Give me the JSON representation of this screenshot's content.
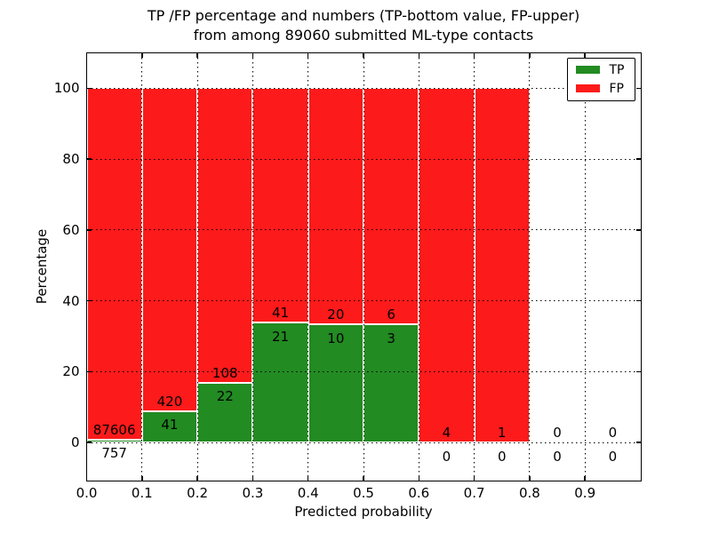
{
  "chart_data": {
    "type": "bar",
    "variant": "stacked-percentage-histogram",
    "title_line1": "TP /FP percentage and numbers (TP-bottom value, FP-upper)",
    "title_line2": "from among 89060 submitted ML-type contacts",
    "total_contacts": 89060,
    "xlabel": "Predicted probability",
    "ylabel": "Percentage",
    "bin_width": 0.1,
    "bin_starts": [
      0.0,
      0.1,
      0.2,
      0.3,
      0.4,
      0.5,
      0.6,
      0.7,
      0.8,
      0.9
    ],
    "series": [
      {
        "name": "TP",
        "color": "#228b22",
        "counts": [
          757,
          41,
          22,
          21,
          10,
          3,
          0,
          0,
          0,
          0
        ]
      },
      {
        "name": "FP",
        "color": "#fc1a1a",
        "counts": [
          87606,
          420,
          108,
          41,
          20,
          6,
          4,
          1,
          0,
          0
        ]
      }
    ],
    "tp_percent_by_bin": [
      0.86,
      8.89,
      16.92,
      33.87,
      33.33,
      33.33,
      0.0,
      0.0,
      0.0,
      0.0
    ],
    "xtick_labels": [
      "0.0",
      "0.1",
      "0.2",
      "0.3",
      "0.4",
      "0.5",
      "0.6",
      "0.7",
      "0.8",
      "0.9"
    ],
    "xtick_values": [
      0.0,
      0.1,
      0.2,
      0.3,
      0.4,
      0.5,
      0.6,
      0.7,
      0.8,
      0.9
    ],
    "ytick_labels": [
      "0",
      "20",
      "40",
      "60",
      "80",
      "100"
    ],
    "ytick_values": [
      0,
      20,
      40,
      60,
      80,
      100
    ],
    "xlim": [
      0.0,
      1.0
    ],
    "ylim": [
      -10.6,
      110
    ],
    "grid": {
      "style": "dotted",
      "color": "#000000",
      "drawn_above_bars": true
    },
    "legend": {
      "position": "upper right",
      "entries": [
        "TP",
        "FP"
      ]
    },
    "background_color": "#ffffff",
    "text_color": "#000000"
  }
}
